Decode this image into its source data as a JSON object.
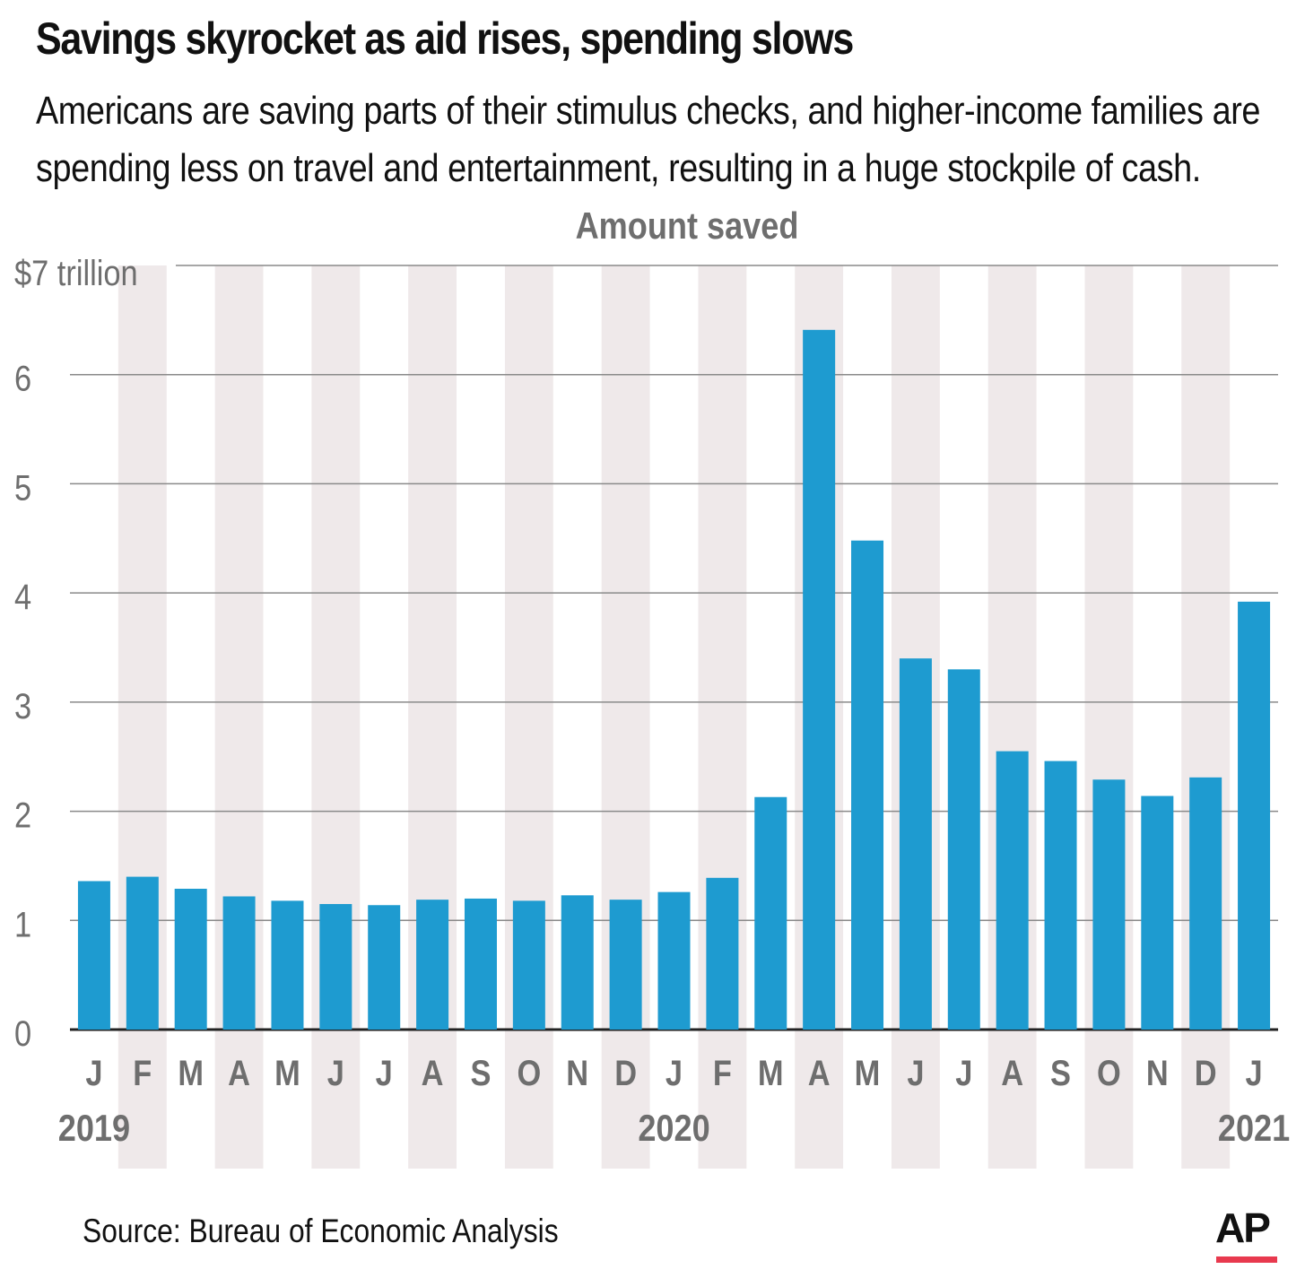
{
  "title": "Savings skyrocket as aid rises, spending slows",
  "subtitle": "Americans are saving parts of their stimulus checks, and higher-income families are spending less on travel and entertainment, resulting in a huge stockpile of cash.",
  "source": "Source: Bureau of Economic Analysis",
  "logo": "AP",
  "colors": {
    "bar": "#1e9bd0",
    "band": "#efe9ea",
    "grid": "#8a8a8a",
    "axis_text": "#6e6e6e",
    "logo_accent": "#e8394e"
  },
  "chart_data": {
    "type": "bar",
    "title": "Amount saved",
    "ylabel": "$ trillion",
    "y_tick_labels": [
      "0",
      "1",
      "2",
      "3",
      "4",
      "5",
      "6",
      "$7 trillion"
    ],
    "y_ticks": [
      0,
      1,
      2,
      3,
      4,
      5,
      6,
      7
    ],
    "ylim": [
      0,
      7
    ],
    "categories": [
      "J",
      "F",
      "M",
      "A",
      "M",
      "J",
      "J",
      "A",
      "S",
      "O",
      "N",
      "D",
      "J",
      "F",
      "M",
      "A",
      "M",
      "J",
      "J",
      "A",
      "S",
      "O",
      "N",
      "D",
      "J"
    ],
    "year_labels": [
      {
        "label": "2019",
        "index": 0
      },
      {
        "label": "2020",
        "index": 12
      },
      {
        "label": "2021",
        "index": 24
      }
    ],
    "series": [
      {
        "name": "Amount saved",
        "values": [
          1.36,
          1.4,
          1.29,
          1.22,
          1.18,
          1.15,
          1.14,
          1.19,
          1.2,
          1.18,
          1.23,
          1.19,
          1.26,
          1.39,
          2.13,
          6.41,
          4.48,
          3.4,
          3.3,
          2.55,
          2.46,
          2.29,
          2.14,
          2.31,
          3.92
        ]
      }
    ]
  }
}
